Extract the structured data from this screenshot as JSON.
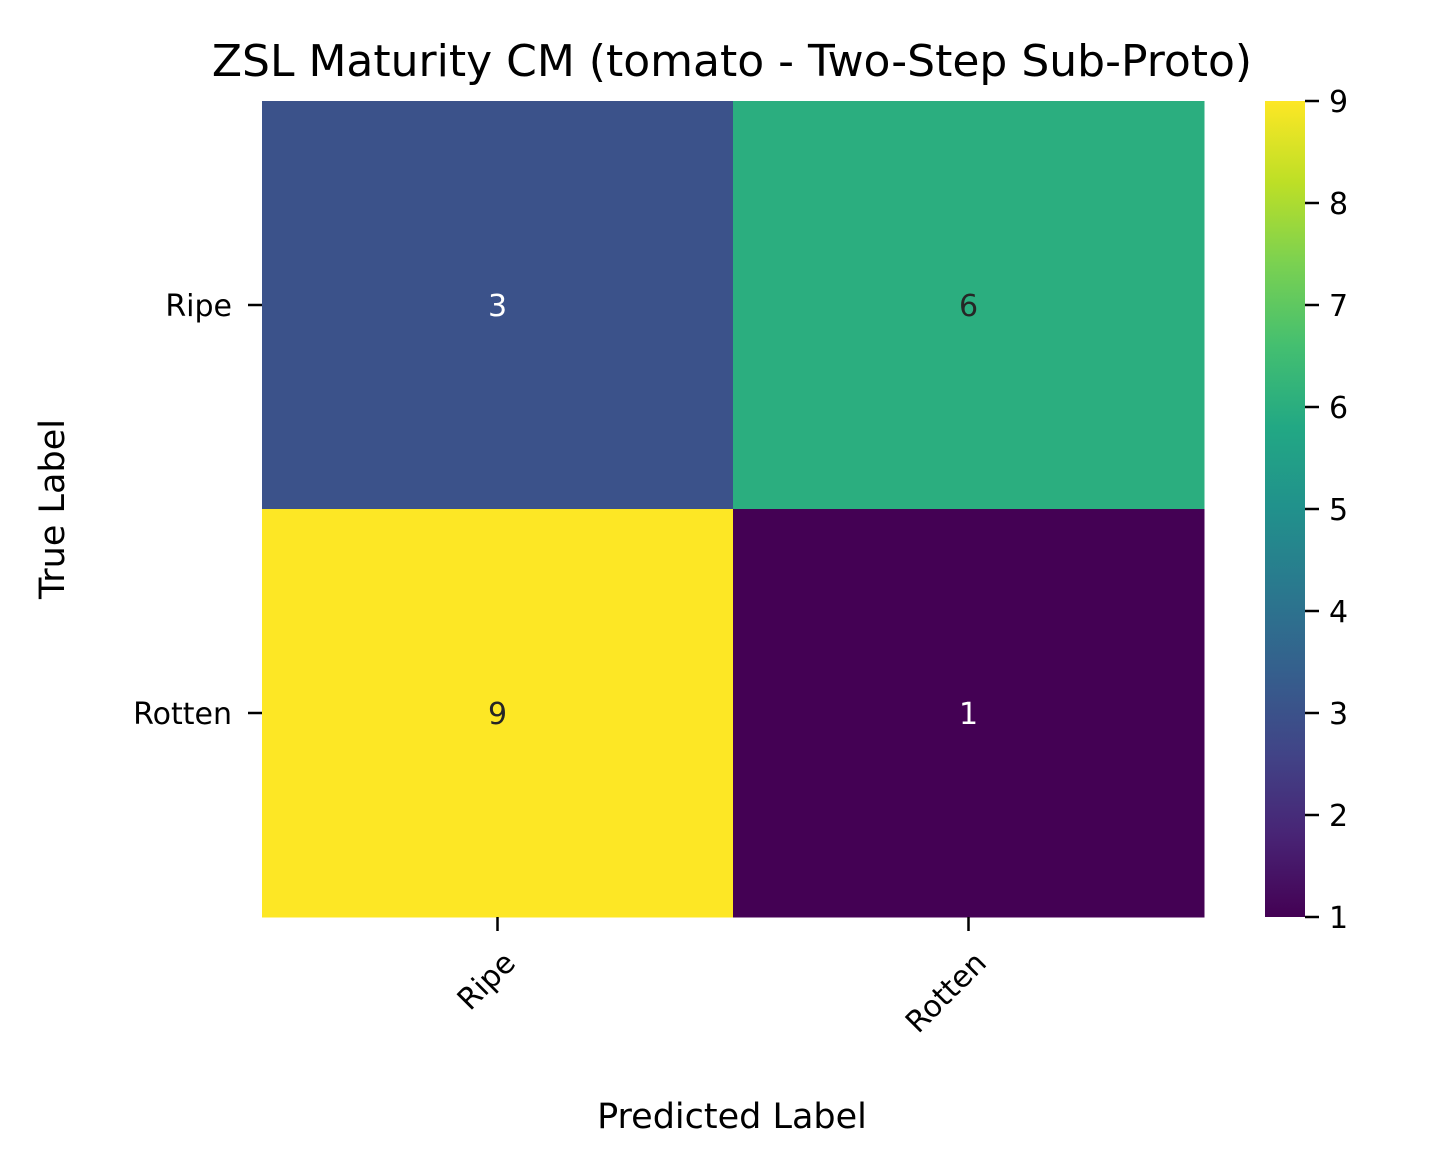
{
  "chart_data": {
    "type": "heatmap",
    "title": "ZSL Maturity CM (tomato - Two-Step Sub-Proto)",
    "xlabel": "Predicted Label",
    "ylabel": "True Label",
    "x_categories": [
      "Ripe",
      "Rotten"
    ],
    "y_categories": [
      "Ripe",
      "Rotten"
    ],
    "matrix": [
      [
        3,
        6
      ],
      [
        9,
        1
      ]
    ],
    "colormap": "viridis",
    "colorbar": {
      "min": 1,
      "max": 9,
      "ticks": [
        1,
        2,
        3,
        4,
        5,
        6,
        7,
        8,
        9
      ]
    },
    "annotation_colors": {
      "light": "#ffffff",
      "dark": "#262626"
    },
    "x_tick_rotation": "45 degrees, right-aligned",
    "grid": false,
    "legend": "colorbar at right"
  }
}
